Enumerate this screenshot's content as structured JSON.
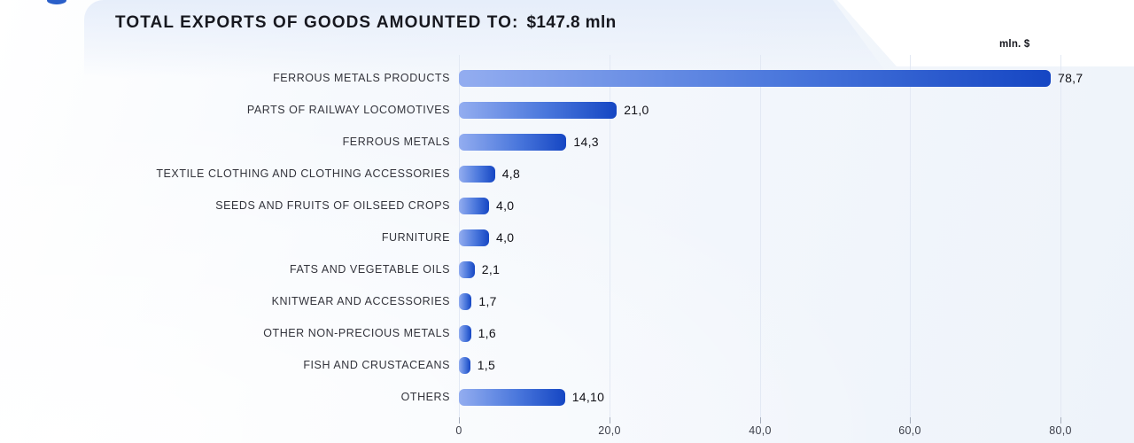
{
  "header": {
    "title_prefix": "TOTAL EXPORTS OF GOODS AMOUNTED TO:",
    "title_value": "$147.8 mln",
    "unit_label": "mln. $"
  },
  "chart_data": {
    "type": "bar",
    "orientation": "horizontal",
    "title": "TOTAL EXPORTS OF GOODS AMOUNTED TO: $147.8 mln",
    "unit": "mln. $",
    "categories": [
      "FERROUS METALS PRODUCTS",
      "PARTS OF RAILWAY LOCOMOTIVES",
      "FERROUS METALS",
      "TEXTILE CLOTHING AND CLOTHING ACCESSORIES",
      "SEEDS AND FRUITS OF OILSEED CROPS",
      "FURNITURE",
      "FATS AND VEGETABLE OILS",
      "KNITWEAR AND ACCESSORIES",
      "OTHER NON-PRECIOUS METALS",
      "FISH AND CRUSTACEANS",
      "OTHERS"
    ],
    "values": [
      78.7,
      21.0,
      14.3,
      4.8,
      4.0,
      4.0,
      2.1,
      1.7,
      1.6,
      1.5,
      14.1
    ],
    "value_labels": [
      "78,7",
      "21,0",
      "14,3",
      "4,8",
      "4,0",
      "4,0",
      "2,1",
      "1,7",
      "1,6",
      "1,5",
      "14,10"
    ],
    "xlim": [
      0,
      80
    ],
    "x_ticks": [
      0,
      20,
      40,
      60,
      80
    ],
    "x_tick_labels": [
      "0",
      "20,0",
      "40,0",
      "60,0",
      "80,0"
    ],
    "grid": "vertical-gridlines-on",
    "legend": "none",
    "bar_gradient": [
      "#93ADF0",
      "#1546C3"
    ]
  },
  "colors": {
    "bar_light": "#93ADF0",
    "bar_mid": "#4A77DC",
    "bar_dark": "#1546C3",
    "gridline": "#e3e9f4",
    "tick": "#a6aebc",
    "title_text": "#17181f",
    "category_text": "#33343c",
    "value_text": "#101016",
    "axis_text": "#3c3f4a",
    "logo_blue": "#2a5fc9",
    "background_tint": "#eef3fa"
  }
}
